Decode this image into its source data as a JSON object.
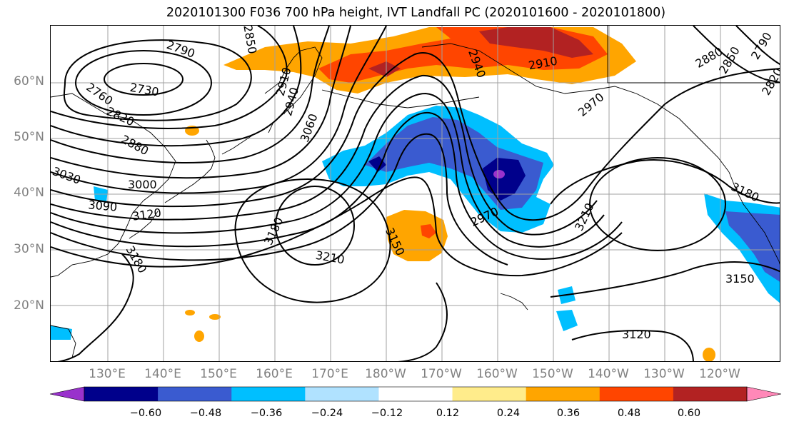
{
  "title": "2020101300 F036 700 hPa height, IVT Landfall PC (2020101600 - 2020101800)",
  "lat_labels": [
    "60°N",
    "50°N",
    "40°N",
    "30°N",
    "20°N"
  ],
  "lon_labels": [
    "130°E",
    "140°E",
    "150°E",
    "160°E",
    "170°E",
    "180°W",
    "170°W",
    "160°W",
    "150°W",
    "140°W",
    "130°W",
    "120°W"
  ],
  "contour_labels": [
    "2790",
    "2730",
    "2760",
    "2820",
    "2880",
    "3030",
    "3000",
    "3090",
    "3120",
    "3180",
    "2850",
    "2910",
    "2940",
    "2970",
    "3060",
    "2910",
    "2940",
    "2970",
    "3180",
    "3210",
    "3150",
    "2970",
    "3210",
    "3180",
    "3150",
    "3120",
    "2880",
    "2850",
    "2790",
    "2820"
  ],
  "colorbar": {
    "ticks": [
      "−0.60",
      "−0.48",
      "−0.36",
      "−0.24",
      "−0.12",
      "0.12",
      "0.24",
      "0.36",
      "0.48",
      "0.60"
    ],
    "colors": [
      "#9932cc",
      "#00008b",
      "#3a5bd0",
      "#00bfff",
      "#b0e2ff",
      "#ffffff",
      "#ffec8b",
      "#ffa500",
      "#ff4500",
      "#b22222",
      "#ff88b8"
    ]
  }
}
